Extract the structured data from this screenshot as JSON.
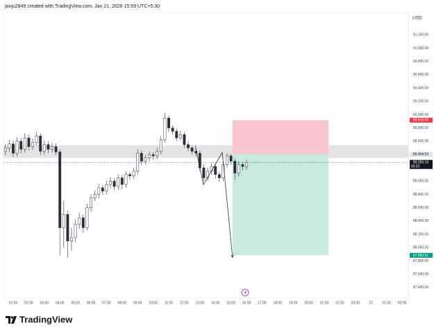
{
  "header": {
    "text": "janju2849 created with TradingView.com, Jan 21, 2026 15:59 UTC+5:30"
  },
  "brand": "TradingView",
  "chart_data": {
    "type": "candlestick",
    "currency": "USD",
    "x": [
      0.5,
      0.75,
      1,
      1.25,
      1.5,
      1.75,
      2,
      2.25,
      2.5,
      2.75,
      3,
      3.25,
      3.5,
      3.75,
      4,
      4.25,
      4.5,
      4.75,
      5,
      5.25,
      5.5,
      5.75,
      6,
      6.25,
      6.5,
      6.75,
      7,
      7.25,
      7.5,
      7.75,
      8,
      8.25,
      8.5,
      8.75,
      9,
      9.25,
      9.5,
      9.75,
      10,
      10.25,
      10.5,
      10.75,
      11,
      11.25,
      11.5,
      11.75,
      12,
      12.25,
      12.5,
      12.75,
      13,
      13.25,
      13.5,
      13.75,
      14,
      14.25,
      14.5,
      14.75,
      15,
      15.25,
      15.5,
      15.75,
      16
    ],
    "open": [
      89450,
      89500,
      89560,
      89420,
      89600,
      89480,
      89650,
      89520,
      89580,
      89680,
      89450,
      89550,
      89480,
      89520,
      89440,
      88300,
      88500,
      88100,
      88150,
      88350,
      88450,
      88300,
      88600,
      88750,
      88800,
      88900,
      88850,
      88950,
      89000,
      88920,
      89050,
      88950,
      89100,
      89080,
      89150,
      89420,
      89300,
      89350,
      89400,
      89380,
      89450,
      89620,
      89950,
      89800,
      89750,
      89650,
      89700,
      89550,
      89500,
      89450,
      89420,
      89200,
      89050,
      89150,
      89220,
      89100,
      89050,
      89250,
      89380,
      89300,
      89120,
      89250,
      89220
    ],
    "high": [
      89560,
      89620,
      89610,
      89660,
      89650,
      89720,
      89700,
      89640,
      89740,
      89720,
      89610,
      89600,
      89580,
      89570,
      89480,
      88700,
      88560,
      88300,
      88420,
      88520,
      88500,
      88660,
      88800,
      88860,
      88960,
      88940,
      89010,
      89060,
      89040,
      89100,
      89090,
      89150,
      89140,
      89200,
      89480,
      89460,
      89400,
      89450,
      89440,
      89500,
      89680,
      90030,
      89990,
      89840,
      89790,
      89760,
      89740,
      89600,
      89540,
      89500,
      89460,
      89250,
      89200,
      89270,
      89260,
      89140,
      89300,
      89420,
      89410,
      89340,
      89300,
      89290,
      89320
    ],
    "low": [
      89390,
      89440,
      89360,
      89370,
      89420,
      89430,
      89460,
      89470,
      89530,
      89390,
      89400,
      89420,
      89430,
      89390,
      87880,
      88000,
      87850,
      87950,
      88080,
      88280,
      88220,
      88260,
      88540,
      88700,
      88740,
      88790,
      88800,
      88890,
      88860,
      88870,
      88880,
      88900,
      89020,
      89030,
      89100,
      89240,
      89250,
      89300,
      89320,
      89330,
      89400,
      89580,
      89740,
      89700,
      89600,
      89610,
      89500,
      89450,
      89400,
      89370,
      89150,
      88990,
      89000,
      89100,
      89040,
      88990,
      89000,
      89200,
      89250,
      89020,
      89070,
      89160,
      89170
    ],
    "close": [
      89500,
      89560,
      89420,
      89600,
      89480,
      89650,
      89520,
      89580,
      89680,
      89450,
      89550,
      89480,
      89520,
      89440,
      88300,
      88500,
      88100,
      88150,
      88350,
      88450,
      88300,
      88600,
      88750,
      88800,
      88900,
      88850,
      88950,
      89000,
      88920,
      89050,
      88950,
      89100,
      89080,
      89150,
      89420,
      89300,
      89350,
      89400,
      89380,
      89450,
      89620,
      89950,
      89800,
      89750,
      89650,
      89700,
      89550,
      89500,
      89450,
      89420,
      89200,
      89050,
      89150,
      89220,
      89100,
      89050,
      89250,
      89380,
      89300,
      89120,
      89250,
      89220,
      89283.16
    ],
    "up_color": "#ffffff",
    "down_color": "#2a2e39",
    "xlim": [
      0.375,
      26.4
    ],
    "ylim": [
      87242,
      91537
    ],
    "xticks": [
      {
        "value": 1,
        "label": "01:00"
      },
      {
        "value": 2,
        "label": "02:00"
      },
      {
        "value": 3,
        "label": "03:00"
      },
      {
        "value": 4,
        "label": "04:00"
      },
      {
        "value": 5,
        "label": "05:00"
      },
      {
        "value": 6,
        "label": "06:00"
      },
      {
        "value": 7,
        "label": "07:00"
      },
      {
        "value": 8,
        "label": "08:00"
      },
      {
        "value": 9,
        "label": "09:00"
      },
      {
        "value": 10,
        "label": "10:00"
      },
      {
        "value": 11,
        "label": "11:00"
      },
      {
        "value": 12,
        "label": "12:00"
      },
      {
        "value": 13,
        "label": "13:00"
      },
      {
        "value": 14,
        "label": "14:00"
      },
      {
        "value": 15,
        "label": "15:00"
      },
      {
        "value": 16,
        "label": "16:00"
      },
      {
        "value": 17,
        "label": "17:00"
      },
      {
        "value": 18,
        "label": "18:00"
      },
      {
        "value": 19,
        "label": "19:00"
      },
      {
        "value": 20,
        "label": "20:00"
      },
      {
        "value": 21,
        "label": "21:00"
      },
      {
        "value": 22,
        "label": "22:00"
      },
      {
        "value": 23,
        "label": "23:00"
      },
      {
        "value": 24,
        "label": "22"
      },
      {
        "value": 25,
        "label": "01:00"
      },
      {
        "value": 26,
        "label": "02:00"
      }
    ],
    "yticks": [
      {
        "value": 87400,
        "label": "87,400.00"
      },
      {
        "value": 87600,
        "label": "87,600.00"
      },
      {
        "value": 87800,
        "label": "87,800.00"
      },
      {
        "value": 88000,
        "label": "88,000.00"
      },
      {
        "value": 88200,
        "label": "88,200.00"
      },
      {
        "value": 88400,
        "label": "88,400.00"
      },
      {
        "value": 88600,
        "label": "88,600.00"
      },
      {
        "value": 88800,
        "label": "88,800.00"
      },
      {
        "value": 89000,
        "label": "89,000.00"
      },
      {
        "value": 89200,
        "label": "89,200.00"
      },
      {
        "value": 89400,
        "label": "89,400.00"
      },
      {
        "value": 89600,
        "label": "89,600.00"
      },
      {
        "value": 89800,
        "label": "89,800.00"
      },
      {
        "value": 90000,
        "label": "90,000.00"
      },
      {
        "value": 90200,
        "label": "90,200.00"
      },
      {
        "value": 90400,
        "label": "90,400.00"
      },
      {
        "value": 90600,
        "label": "90,600.00"
      },
      {
        "value": 90800,
        "label": "90,800.00"
      },
      {
        "value": 91000,
        "label": "91,000.00"
      },
      {
        "value": 91200,
        "label": "91,200.00"
      }
    ],
    "zone": {
      "low": 89350,
      "high": 89540,
      "color": "#d9d9d9"
    },
    "position": {
      "x": [
        15.1,
        21.27
      ],
      "entry": 89404.53,
      "stop": 89916.9,
      "target": 87883.91,
      "stop_color": "#f7c6cb",
      "target_color": "#c8e9e0"
    },
    "drawing": {
      "x": [
        12.7,
        13.23,
        14.44,
        15.1
      ],
      "y": [
        89537,
        88947,
        89432,
        87853
      ]
    },
    "price_labels": [
      {
        "value": 89916.9,
        "label": "89,916.90",
        "color": "#f23645",
        "text_color": "#ffffff"
      },
      {
        "value": 89404.53,
        "label": "89,404.53",
        "color": "#e0e3eb",
        "text_color": "#131722"
      },
      {
        "value": 89283.16,
        "label": "89,283.16",
        "color": "#131722",
        "text_color": "#ffffff"
      },
      {
        "value": 87883.91,
        "label": "87,883.91",
        "color": "#089981",
        "text_color": "#ffffff"
      }
    ],
    "countdown": "00:33"
  }
}
